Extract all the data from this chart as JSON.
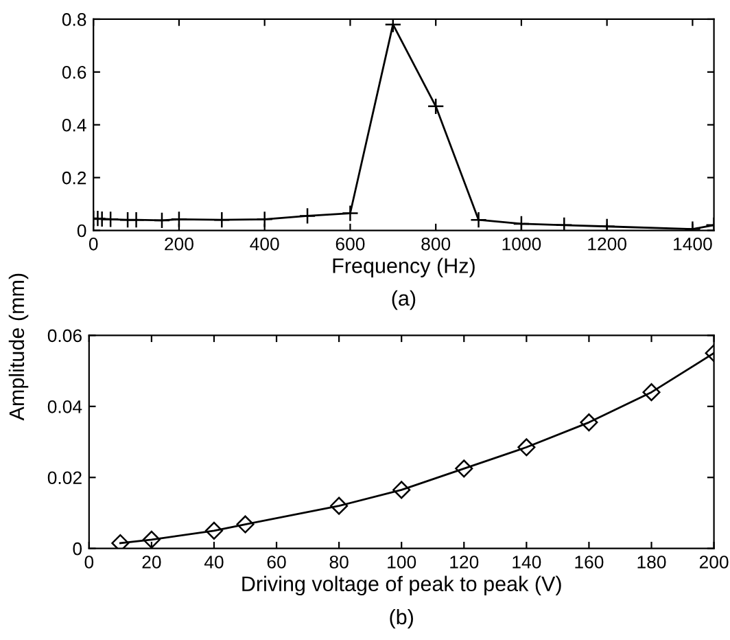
{
  "chart_data": [
    {
      "type": "line",
      "xlabel": "Frequency (Hz)",
      "ylabel": "Amplitude (mm)",
      "annotations": [
        "(a)"
      ],
      "series": [
        {
          "color": "#000000",
          "x": [
            0,
            10,
            20,
            40,
            80,
            100,
            160,
            200,
            300,
            400,
            500,
            600,
            700,
            800,
            900,
            1000,
            1100,
            1200,
            1400,
            1450
          ],
          "values": [
            0.045,
            0.045,
            0.043,
            0.042,
            0.04,
            0.04,
            0.038,
            0.042,
            0.04,
            0.042,
            0.055,
            0.065,
            0.78,
            0.47,
            0.04,
            0.025,
            0.02,
            0.015,
            0.005,
            0.02
          ]
        }
      ],
      "xlim": [
        0,
        1450
      ],
      "ylim": [
        0,
        0.8
      ],
      "xticks": [
        0,
        200,
        400,
        600,
        800,
        1000,
        1200,
        1400
      ],
      "yticks": [
        0,
        0.2,
        0.4,
        0.6,
        0.8
      ],
      "marker": "cross",
      "line_style": "solid",
      "grid": false,
      "legend": false
    },
    {
      "type": "line",
      "xlabel": "Driving voltage of peak to peak (V)",
      "annotations": [
        "(b)"
      ],
      "series": [
        {
          "color": "#000000",
          "x": [
            10,
            20,
            40,
            50,
            80,
            100,
            120,
            140,
            160,
            180,
            200
          ],
          "values": [
            0.0015,
            0.0025,
            0.005,
            0.0068,
            0.012,
            0.0165,
            0.0225,
            0.0285,
            0.0355,
            0.044,
            0.055
          ]
        }
      ],
      "xlim": [
        0,
        200
      ],
      "ylim": [
        0,
        0.06
      ],
      "xticks": [
        0,
        20,
        40,
        60,
        80,
        100,
        120,
        140,
        160,
        180,
        200
      ],
      "yticks": [
        0,
        0.02,
        0.04,
        0.06
      ],
      "marker": "diamond",
      "line_style": "solid",
      "grid": false,
      "legend": false
    }
  ]
}
